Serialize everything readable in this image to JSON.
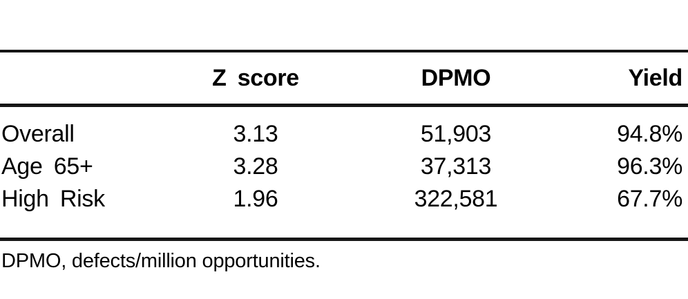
{
  "table": {
    "headers": {
      "row_label": "",
      "z_score": "Z score",
      "dpmo": "DPMO",
      "yield_pct": "Yield"
    },
    "rows": [
      {
        "label": "Overall",
        "z_score": "3.13",
        "dpmo": "51,903",
        "yield_pct": "94.8%"
      },
      {
        "label": "Age 65+",
        "z_score": "3.28",
        "dpmo": "37,313",
        "yield_pct": "96.3%"
      },
      {
        "label": "High Risk",
        "z_score": "1.96",
        "dpmo": "322,581",
        "yield_pct": "67.7%"
      }
    ],
    "footnote": "DPMO, defects/million opportunities."
  },
  "chart_data": {
    "type": "table",
    "columns": [
      "",
      "Z score",
      "DPMO",
      "Yield"
    ],
    "rows": [
      [
        "Overall",
        3.13,
        51903,
        "94.8%"
      ],
      [
        "Age 65+",
        3.28,
        37313,
        "96.3%"
      ],
      [
        "High Risk",
        1.96,
        322581,
        "67.7%"
      ]
    ],
    "footnote": "DPMO, defects/million opportunities."
  },
  "colors": {
    "text": "#000000",
    "rule": "#161616",
    "background": "#ffffff"
  }
}
